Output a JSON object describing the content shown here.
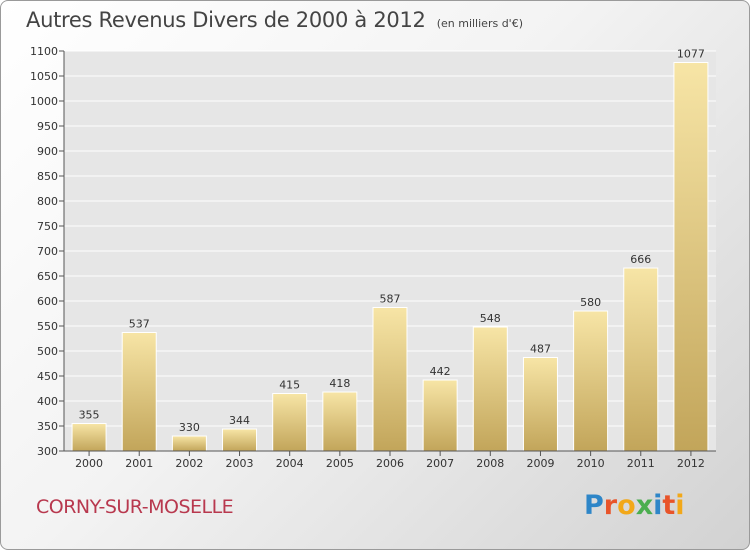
{
  "title": "Autres Revenus Divers de 2000 à 2012",
  "unit": "(en milliers d'€)",
  "commune": "CORNY-SUR-MOSELLE",
  "logo": "Proxiti",
  "colors": {
    "bar_top": "#f7e5a6",
    "bar_bottom": "#c2a55a",
    "title": "#444444",
    "commune": "#b8384e"
  },
  "chart_data": {
    "type": "bar",
    "title": "Autres Revenus Divers de 2000 à 2012",
    "subtitle": "(en milliers d'€)",
    "categories": [
      "2000",
      "2001",
      "2002",
      "2003",
      "2004",
      "2005",
      "2006",
      "2007",
      "2008",
      "2009",
      "2010",
      "2011",
      "2012"
    ],
    "values": [
      355,
      537,
      330,
      344,
      415,
      418,
      587,
      442,
      548,
      487,
      580,
      666,
      1077
    ],
    "ylim": [
      300,
      1100
    ],
    "yticks": [
      300,
      350,
      400,
      450,
      500,
      550,
      600,
      650,
      700,
      750,
      800,
      850,
      900,
      950,
      1000,
      1050,
      1100
    ],
    "grid": true,
    "data_labels": true
  }
}
